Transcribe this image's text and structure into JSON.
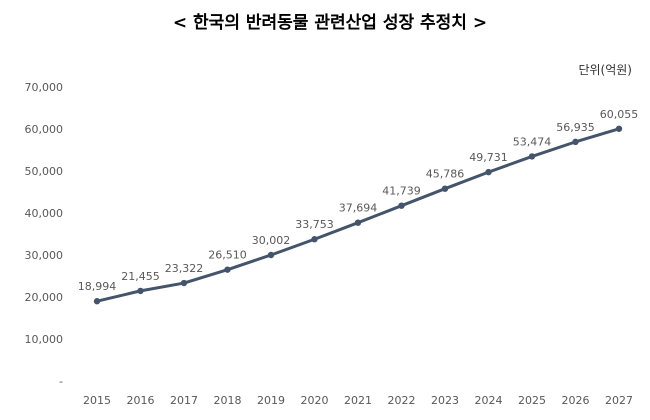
{
  "chart_data": {
    "type": "line",
    "title": "< 한국의 반려동물 관련산업 성장 추정치 >",
    "unit_label": "단위(억원)",
    "categories": [
      "2015",
      "2016",
      "2017",
      "2018",
      "2019",
      "2020",
      "2021",
      "2022",
      "2023",
      "2024",
      "2025",
      "2026",
      "2027"
    ],
    "values": [
      18994,
      21455,
      23322,
      26510,
      30002,
      33753,
      37694,
      41739,
      45786,
      49731,
      53474,
      56935,
      60055
    ],
    "data_labels": [
      "18,994",
      "21,455",
      "23,322",
      "26,510",
      "30,002",
      "33,753",
      "37,694",
      "41,739",
      "45,786",
      "49,731",
      "53,474",
      "56,935",
      "60,055"
    ],
    "y_ticks": [
      {
        "value": 0,
        "label": "-"
      },
      {
        "value": 10000,
        "label": "10,000"
      },
      {
        "value": 20000,
        "label": "20,000"
      },
      {
        "value": 30000,
        "label": "30,000"
      },
      {
        "value": 40000,
        "label": "40,000"
      },
      {
        "value": 50000,
        "label": "50,000"
      },
      {
        "value": 60000,
        "label": "60,000"
      },
      {
        "value": 70000,
        "label": "70,000"
      }
    ],
    "ylim": [
      0,
      70000
    ],
    "grid": false,
    "legend": "none",
    "line_color": "#44546a"
  }
}
